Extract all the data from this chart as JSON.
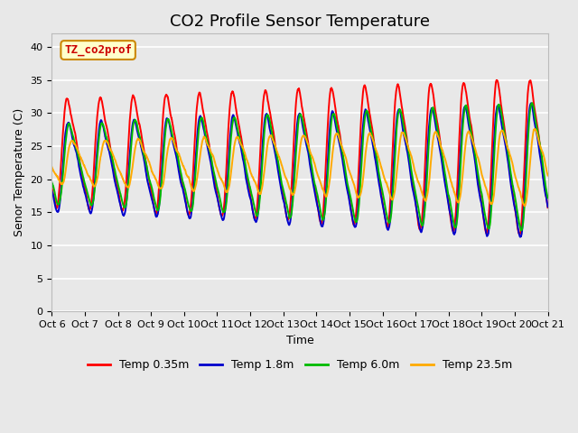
{
  "title": "CO2 Profile Sensor Temperature",
  "ylabel": "Senor Temperature (C)",
  "xlabel": "Time",
  "annotation": "TZ_co2prof",
  "annotation_color": "#cc0000",
  "annotation_bg": "#ffffcc",
  "annotation_border": "#cc8800",
  "ylim": [
    0,
    42
  ],
  "yticks": [
    0,
    5,
    10,
    15,
    20,
    25,
    30,
    35,
    40
  ],
  "xtick_labels": [
    "Oct 6",
    "Oct 7",
    "Oct 8",
    "Oct 9",
    "Oct 10",
    "Oct 11",
    "Oct 12",
    "Oct 13",
    "Oct 14",
    "Oct 15",
    "Oct 16",
    "Oct 17",
    "Oct 18",
    "Oct 19",
    "Oct 20",
    "Oct 21"
  ],
  "colors": {
    "Temp 0.35m": "#ff0000",
    "Temp 1.8m": "#0000cc",
    "Temp 6.0m": "#00bb00",
    "Temp 23.5m": "#ffaa00"
  },
  "line_width": 1.4,
  "bg_color": "#e8e8e8",
  "plot_bg": "#e8e8e8",
  "grid_color": "#ffffff",
  "title_fontsize": 13,
  "axis_fontsize": 9,
  "tick_fontsize": 8,
  "legend_fontsize": 9,
  "figsize": [
    6.4,
    4.8
  ],
  "dpi": 100
}
